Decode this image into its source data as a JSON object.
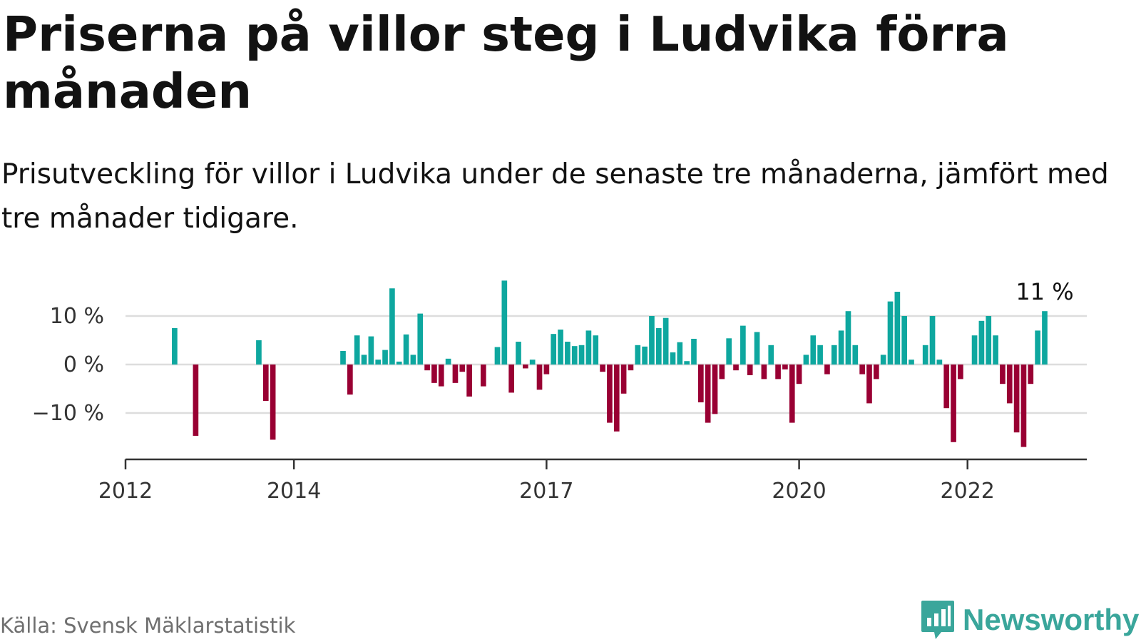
{
  "title": "Priserna på villor steg i Ludvika förra månaden",
  "subtitle": "Prisutveckling för villor i Ludvika under de senaste tre månaderna, jämfört med tre månader tidigare.",
  "source": "Källa: Svensk Mäklarstatistik",
  "brand": {
    "name": "Newsworthy",
    "logo_icon": "newsworthy-bar-chart-speech-bubble-icon",
    "color": "#3aa69b"
  },
  "chart_data": {
    "type": "bar",
    "title": "Priserna på villor steg i Ludvika förra månaden",
    "xlabel": "",
    "ylabel": "",
    "unit": "%",
    "ylim": [
      -19,
      19
    ],
    "yticks": [
      -10,
      0,
      10
    ],
    "ytick_labels": [
      "−10 %",
      "0 %",
      "10 %"
    ],
    "xlim": [
      "2012-01",
      "2023-06"
    ],
    "xticks": [
      "2012-01",
      "2014-01",
      "2017-01",
      "2020-01",
      "2022-01"
    ],
    "xtick_labels": [
      "2012",
      "2014",
      "2017",
      "2020",
      "2022"
    ],
    "grid": true,
    "colors": {
      "positive": "#0ea79f",
      "negative": "#990033",
      "grid": "#dddddd",
      "axis": "#333333"
    },
    "annotation": {
      "text": "11 %",
      "at": "2022-12"
    },
    "series": [
      {
        "points": [
          [
            "2012-08",
            7.5
          ],
          [
            "2012-11",
            -14.7
          ],
          [
            "2013-08",
            5
          ],
          [
            "2013-09",
            -7.5
          ],
          [
            "2013-10",
            -15.5
          ],
          [
            "2014-08",
            2.8
          ],
          [
            "2014-09",
            -6.2
          ],
          [
            "2014-10",
            6
          ],
          [
            "2014-11",
            2
          ],
          [
            "2014-12",
            5.8
          ],
          [
            "2015-01",
            1
          ],
          [
            "2015-02",
            3
          ],
          [
            "2015-03",
            15.7
          ],
          [
            "2015-04",
            0.6
          ],
          [
            "2015-05",
            6.2
          ],
          [
            "2015-06",
            2
          ],
          [
            "2015-07",
            10.5
          ],
          [
            "2015-08",
            -1.2
          ],
          [
            "2015-09",
            -3.8
          ],
          [
            "2015-10",
            -4.5
          ],
          [
            "2015-11",
            1.2
          ],
          [
            "2015-12",
            -3.8
          ],
          [
            "2016-01",
            -1.5
          ],
          [
            "2016-02",
            -6.6
          ],
          [
            "2016-04",
            -4.5
          ],
          [
            "2016-06",
            3.6
          ],
          [
            "2016-07",
            17.3
          ],
          [
            "2016-08",
            -5.8
          ],
          [
            "2016-09",
            4.7
          ],
          [
            "2016-10",
            -0.8
          ],
          [
            "2016-11",
            1
          ],
          [
            "2016-12",
            -5.2
          ],
          [
            "2017-01",
            -2
          ],
          [
            "2017-02",
            6.3
          ],
          [
            "2017-03",
            7.2
          ],
          [
            "2017-04",
            4.7
          ],
          [
            "2017-05",
            3.8
          ],
          [
            "2017-06",
            4
          ],
          [
            "2017-07",
            7
          ],
          [
            "2017-08",
            6
          ],
          [
            "2017-09",
            -1.5
          ],
          [
            "2017-10",
            -12
          ],
          [
            "2017-11",
            -13.8
          ],
          [
            "2017-12",
            -6
          ],
          [
            "2018-01",
            -1.2
          ],
          [
            "2018-02",
            4
          ],
          [
            "2018-03",
            3.7
          ],
          [
            "2018-04",
            10
          ],
          [
            "2018-05",
            7.5
          ],
          [
            "2018-06",
            9.6
          ],
          [
            "2018-07",
            2.5
          ],
          [
            "2018-08",
            4.6
          ],
          [
            "2018-09",
            0.7
          ],
          [
            "2018-10",
            5.3
          ],
          [
            "2018-11",
            -7.8
          ],
          [
            "2018-12",
            -12
          ],
          [
            "2019-01",
            -10.2
          ],
          [
            "2019-02",
            -3
          ],
          [
            "2019-03",
            5.4
          ],
          [
            "2019-04",
            -1.2
          ],
          [
            "2019-05",
            8
          ],
          [
            "2019-06",
            -2.2
          ],
          [
            "2019-07",
            6.7
          ],
          [
            "2019-08",
            -3
          ],
          [
            "2019-09",
            4
          ],
          [
            "2019-10",
            -3
          ],
          [
            "2019-11",
            -1
          ],
          [
            "2019-12",
            -12
          ],
          [
            "2020-01",
            -4
          ],
          [
            "2020-02",
            2
          ],
          [
            "2020-03",
            6
          ],
          [
            "2020-04",
            4
          ],
          [
            "2020-05",
            -2
          ],
          [
            "2020-06",
            4
          ],
          [
            "2020-07",
            7
          ],
          [
            "2020-08",
            11
          ],
          [
            "2020-09",
            4
          ],
          [
            "2020-10",
            -2
          ],
          [
            "2020-11",
            -8
          ],
          [
            "2020-12",
            -3
          ],
          [
            "2021-01",
            2
          ],
          [
            "2021-02",
            13
          ],
          [
            "2021-03",
            15
          ],
          [
            "2021-04",
            10
          ],
          [
            "2021-05",
            1
          ],
          [
            "2021-07",
            4
          ],
          [
            "2021-08",
            10
          ],
          [
            "2021-09",
            1
          ],
          [
            "2021-10",
            -9
          ],
          [
            "2021-11",
            -16
          ],
          [
            "2021-12",
            -3
          ],
          [
            "2022-02",
            6
          ],
          [
            "2022-03",
            9
          ],
          [
            "2022-04",
            10
          ],
          [
            "2022-05",
            6
          ],
          [
            "2022-06",
            -4
          ],
          [
            "2022-07",
            -8
          ],
          [
            "2022-08",
            -14
          ],
          [
            "2022-09",
            -17
          ],
          [
            "2022-10",
            -4
          ],
          [
            "2022-11",
            7
          ],
          [
            "2022-12",
            11
          ]
        ]
      }
    ]
  }
}
